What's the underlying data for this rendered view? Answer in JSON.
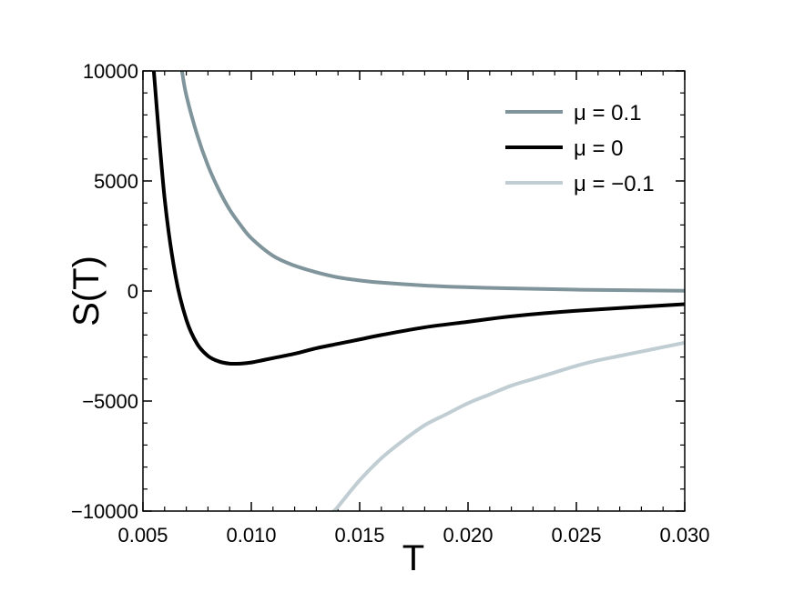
{
  "chart_data": {
    "type": "line",
    "xlabel": "T",
    "ylabel": "S(T)",
    "xlim": [
      0.005,
      0.03
    ],
    "ylim": [
      -10000,
      10000
    ],
    "x_ticks": [
      0.005,
      0.01,
      0.015,
      0.02,
      0.025,
      0.03
    ],
    "x_tick_labels": [
      "0.005",
      "0.010",
      "0.015",
      "0.020",
      "0.025",
      "0.030"
    ],
    "y_ticks": [
      -10000,
      -5000,
      0,
      5000,
      10000
    ],
    "y_tick_labels": [
      "−10000",
      "−5000",
      "0",
      "5000",
      "10000"
    ],
    "legend_position": "top-right",
    "series": [
      {
        "name": "μ = 0.1",
        "color": "#7f949b",
        "x": [
          0.0068,
          0.007,
          0.0075,
          0.008,
          0.0085,
          0.009,
          0.0095,
          0.01,
          0.011,
          0.012,
          0.013,
          0.014,
          0.015,
          0.016,
          0.018,
          0.02,
          0.022,
          0.025,
          0.03
        ],
        "y": [
          10000,
          8900,
          7100,
          5700,
          4600,
          3700,
          3000,
          2400,
          1600,
          1150,
          850,
          620,
          480,
          380,
          250,
          170,
          120,
          60,
          10
        ]
      },
      {
        "name": "μ = 0",
        "color": "#000000",
        "x": [
          0.0055,
          0.006,
          0.0065,
          0.007,
          0.0075,
          0.008,
          0.0085,
          0.009,
          0.0095,
          0.01,
          0.0105,
          0.011,
          0.012,
          0.013,
          0.014,
          0.015,
          0.016,
          0.018,
          0.02,
          0.022,
          0.025,
          0.03
        ],
        "y": [
          10000,
          4200,
          700,
          -1300,
          -2400,
          -2950,
          -3200,
          -3300,
          -3300,
          -3250,
          -3150,
          -3050,
          -2850,
          -2600,
          -2400,
          -2200,
          -2000,
          -1650,
          -1400,
          -1150,
          -900,
          -600
        ]
      },
      {
        "name": "μ = −0.1",
        "color": "#c0cdd3",
        "x": [
          0.0138,
          0.014,
          0.015,
          0.016,
          0.017,
          0.018,
          0.019,
          0.02,
          0.021,
          0.022,
          0.023,
          0.024,
          0.025,
          0.026,
          0.027,
          0.028,
          0.029,
          0.03
        ],
        "y": [
          -10000,
          -9800,
          -8600,
          -7600,
          -6800,
          -6100,
          -5600,
          -5100,
          -4700,
          -4300,
          -4000,
          -3700,
          -3400,
          -3150,
          -2950,
          -2750,
          -2550,
          -2350
        ]
      }
    ]
  }
}
